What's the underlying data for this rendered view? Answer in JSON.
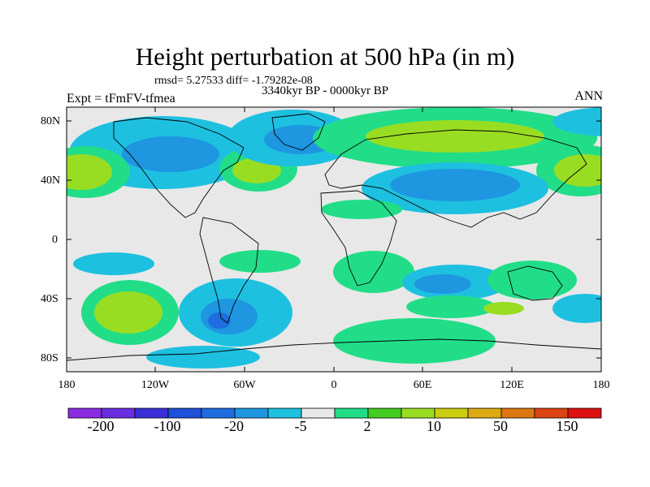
{
  "title": "Height perturbation at 500 hPa (in m)",
  "stats": "rmsd= 5.27533 diff= -1.79282e-08",
  "period": "3340kyr BP - 0000kyr BP",
  "experiment": "Expt = tFmFV-tfmea",
  "season": "ANN",
  "y_ticks": [
    "80N",
    "40N",
    "0",
    "40S",
    "80S"
  ],
  "x_ticks": [
    "180",
    "120W",
    "60W",
    "0",
    "60E",
    "120E",
    "180"
  ],
  "colorbar": {
    "colors": [
      "#8a2be2",
      "#6a2ee0",
      "#3a2ed8",
      "#1e50d8",
      "#1e6ee0",
      "#1e96e0",
      "#1ec0e0",
      "#e8e8e8",
      "#22dd88",
      "#44cc22",
      "#99dd22",
      "#cccc11",
      "#ddaa11",
      "#dd7711",
      "#dd4411",
      "#dd1111"
    ],
    "labels": [
      "-200",
      "-100",
      "-20",
      "-5",
      "2",
      "10",
      "50",
      "150"
    ]
  },
  "map_colors": {
    "land_bg": "#e6e6e6",
    "coast": "#000000"
  }
}
